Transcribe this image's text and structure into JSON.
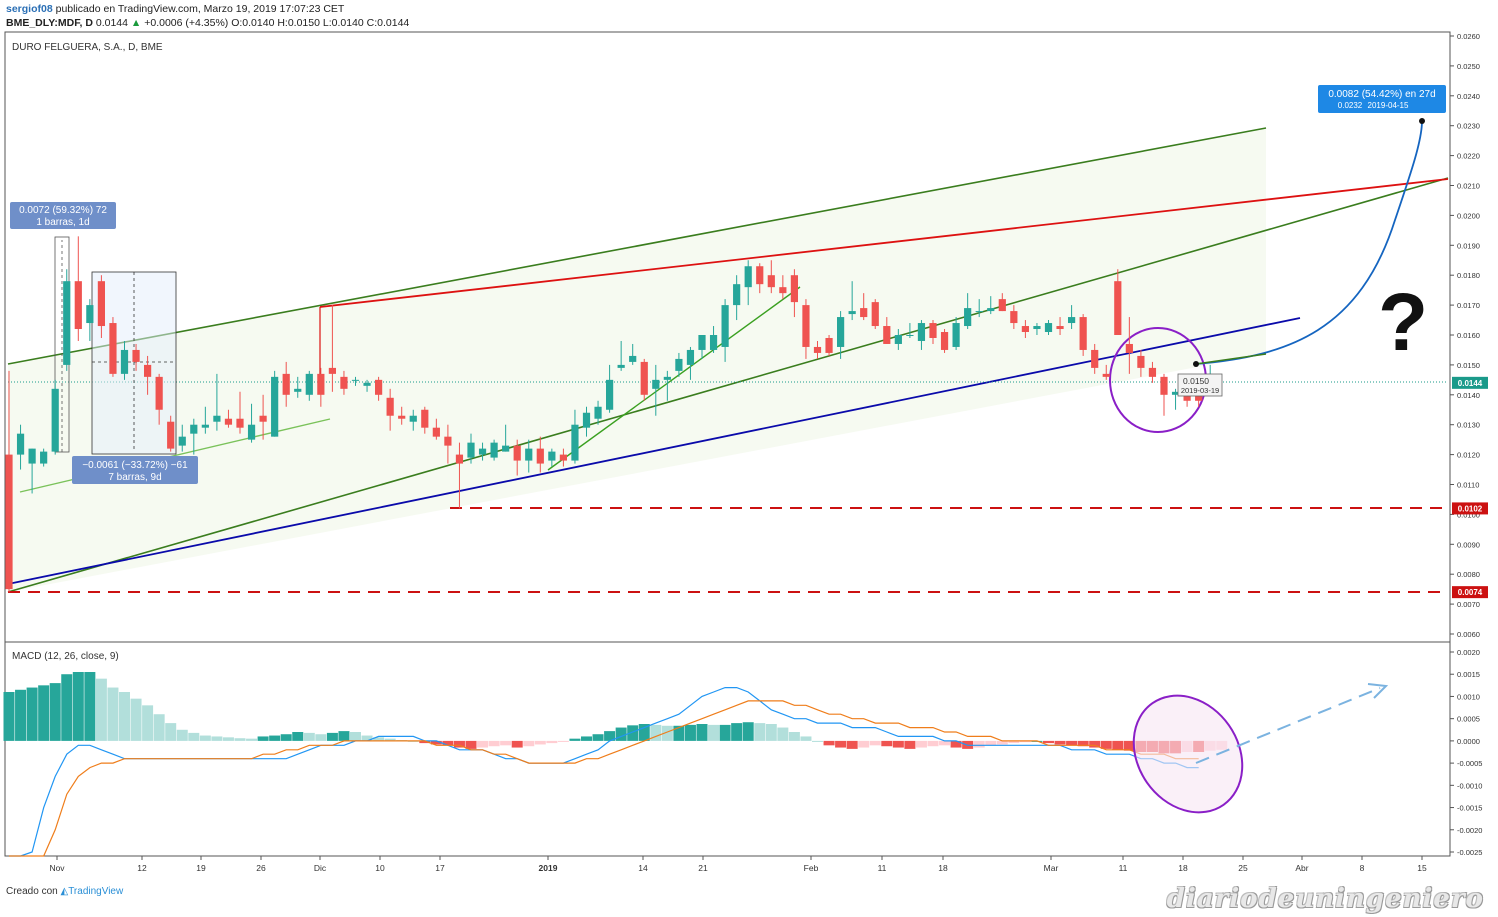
{
  "header": {
    "author": "sergiof08",
    "published_text": "publicado en TradingView.com, Marzo 19, 2019 17:07:23 CET",
    "symbol": "BME_DLY:MDF, D",
    "last_price": "0.0144",
    "change": "+0.0006 (+4.35%)",
    "ohlc_text": "O:0.0140 H:0.0150 L:0.0140 C:0.0144"
  },
  "chart_data": [
    {
      "type": "candlestick",
      "title": "DURO FELGUERA, S.A., D, BME",
      "y_axis_ticks": [
        "0.0260",
        "0.0250",
        "0.0240",
        "0.0230",
        "0.0220",
        "0.0210",
        "0.0200",
        "0.0190",
        "0.0180",
        "0.0170",
        "0.0160",
        "0.0150",
        "0.0140",
        "0.0130",
        "0.0120",
        "0.0110",
        "0.0100",
        "0.0090",
        "0.0080",
        "0.0070",
        "0.0060"
      ],
      "ylim": [
        0.0056,
        0.0261
      ],
      "x_axis_ticks": [
        "Nov",
        "12",
        "19",
        "26",
        "Dic",
        "10",
        "17",
        "2019",
        "14",
        "21",
        "Feb",
        "11",
        "18",
        "Mar",
        "11",
        "18",
        "25",
        "Abr",
        "8",
        "15"
      ],
      "candles": [
        {
          "o": 0.012,
          "h": 0.0148,
          "l": 0.0074,
          "c": 0.0075
        },
        {
          "o": 0.012,
          "h": 0.013,
          "l": 0.0115,
          "c": 0.0127
        },
        {
          "o": 0.0117,
          "h": 0.0122,
          "l": 0.0107,
          "c": 0.0122
        },
        {
          "o": 0.0117,
          "h": 0.0122,
          "l": 0.0116,
          "c": 0.0121
        },
        {
          "o": 0.0121,
          "h": 0.0145,
          "l": 0.012,
          "c": 0.0142
        },
        {
          "o": 0.015,
          "h": 0.0182,
          "l": 0.0148,
          "c": 0.0178
        },
        {
          "o": 0.0178,
          "h": 0.0193,
          "l": 0.0158,
          "c": 0.0162
        },
        {
          "o": 0.0164,
          "h": 0.0172,
          "l": 0.0158,
          "c": 0.017
        },
        {
          "o": 0.0178,
          "h": 0.018,
          "l": 0.0159,
          "c": 0.0163
        },
        {
          "o": 0.0164,
          "h": 0.0166,
          "l": 0.0146,
          "c": 0.0147
        },
        {
          "o": 0.0147,
          "h": 0.0158,
          "l": 0.0145,
          "c": 0.0155
        },
        {
          "o": 0.0155,
          "h": 0.0157,
          "l": 0.0148,
          "c": 0.0151
        },
        {
          "o": 0.015,
          "h": 0.0153,
          "l": 0.014,
          "c": 0.0146
        },
        {
          "o": 0.0146,
          "h": 0.0147,
          "l": 0.013,
          "c": 0.0135
        },
        {
          "o": 0.0131,
          "h": 0.0133,
          "l": 0.0121,
          "c": 0.0122
        },
        {
          "o": 0.0123,
          "h": 0.013,
          "l": 0.0121,
          "c": 0.0126
        },
        {
          "o": 0.0127,
          "h": 0.0132,
          "l": 0.012,
          "c": 0.013
        },
        {
          "o": 0.0129,
          "h": 0.0136,
          "l": 0.0127,
          "c": 0.013
        },
        {
          "o": 0.0131,
          "h": 0.0147,
          "l": 0.0128,
          "c": 0.0133
        },
        {
          "o": 0.0132,
          "h": 0.0135,
          "l": 0.0129,
          "c": 0.013
        },
        {
          "o": 0.0132,
          "h": 0.0141,
          "l": 0.0127,
          "c": 0.0129
        },
        {
          "o": 0.0125,
          "h": 0.0137,
          "l": 0.0124,
          "c": 0.013
        },
        {
          "o": 0.0133,
          "h": 0.014,
          "l": 0.0125,
          "c": 0.0131
        },
        {
          "o": 0.0126,
          "h": 0.0148,
          "l": 0.0126,
          "c": 0.0146
        },
        {
          "o": 0.0147,
          "h": 0.0151,
          "l": 0.0136,
          "c": 0.014
        },
        {
          "o": 0.0141,
          "h": 0.0146,
          "l": 0.0139,
          "c": 0.0142
        },
        {
          "o": 0.014,
          "h": 0.0148,
          "l": 0.0138,
          "c": 0.0147
        },
        {
          "o": 0.0147,
          "h": 0.0149,
          "l": 0.0136,
          "c": 0.014
        },
        {
          "o": 0.0149,
          "h": 0.017,
          "l": 0.0141,
          "c": 0.0147
        },
        {
          "o": 0.0146,
          "h": 0.0148,
          "l": 0.014,
          "c": 0.0142
        },
        {
          "o": 0.0145,
          "h": 0.0146,
          "l": 0.0143,
          "c": 0.0145
        },
        {
          "o": 0.0143,
          "h": 0.0145,
          "l": 0.0141,
          "c": 0.0144
        },
        {
          "o": 0.0145,
          "h": 0.0146,
          "l": 0.0138,
          "c": 0.014
        },
        {
          "o": 0.0139,
          "h": 0.0142,
          "l": 0.0128,
          "c": 0.0133
        },
        {
          "o": 0.0133,
          "h": 0.0136,
          "l": 0.013,
          "c": 0.0132
        },
        {
          "o": 0.0131,
          "h": 0.0135,
          "l": 0.0128,
          "c": 0.0133
        },
        {
          "o": 0.0135,
          "h": 0.0136,
          "l": 0.0127,
          "c": 0.0129
        },
        {
          "o": 0.0129,
          "h": 0.0132,
          "l": 0.0125,
          "c": 0.0126
        },
        {
          "o": 0.0126,
          "h": 0.013,
          "l": 0.0117,
          "c": 0.0123
        },
        {
          "o": 0.012,
          "h": 0.0124,
          "l": 0.0102,
          "c": 0.0117
        },
        {
          "o": 0.0119,
          "h": 0.0127,
          "l": 0.0117,
          "c": 0.0124
        },
        {
          "o": 0.012,
          "h": 0.0124,
          "l": 0.0118,
          "c": 0.0122
        },
        {
          "o": 0.0119,
          "h": 0.0125,
          "l": 0.0118,
          "c": 0.0124
        },
        {
          "o": 0.0121,
          "h": 0.013,
          "l": 0.0121,
          "c": 0.0123
        },
        {
          "o": 0.0123,
          "h": 0.0125,
          "l": 0.0113,
          "c": 0.0118
        },
        {
          "o": 0.0118,
          "h": 0.0125,
          "l": 0.0114,
          "c": 0.0122
        },
        {
          "o": 0.0122,
          "h": 0.0126,
          "l": 0.0114,
          "c": 0.0117
        },
        {
          "o": 0.0118,
          "h": 0.0122,
          "l": 0.0116,
          "c": 0.0121
        },
        {
          "o": 0.012,
          "h": 0.0122,
          "l": 0.0116,
          "c": 0.0118
        },
        {
          "o": 0.0118,
          "h": 0.0135,
          "l": 0.0117,
          "c": 0.013
        },
        {
          "o": 0.0129,
          "h": 0.0136,
          "l": 0.0126,
          "c": 0.0134
        },
        {
          "o": 0.0132,
          "h": 0.0138,
          "l": 0.013,
          "c": 0.0136
        },
        {
          "o": 0.0135,
          "h": 0.015,
          "l": 0.0134,
          "c": 0.0145
        },
        {
          "o": 0.0149,
          "h": 0.0158,
          "l": 0.0148,
          "c": 0.015
        },
        {
          "o": 0.0151,
          "h": 0.0157,
          "l": 0.015,
          "c": 0.0153
        },
        {
          "o": 0.0151,
          "h": 0.0152,
          "l": 0.0138,
          "c": 0.014
        },
        {
          "o": 0.0142,
          "h": 0.015,
          "l": 0.0133,
          "c": 0.0145
        },
        {
          "o": 0.0145,
          "h": 0.0148,
          "l": 0.0138,
          "c": 0.0146
        },
        {
          "o": 0.0148,
          "h": 0.0154,
          "l": 0.0146,
          "c": 0.0152
        },
        {
          "o": 0.015,
          "h": 0.0156,
          "l": 0.0145,
          "c": 0.0155
        },
        {
          "o": 0.0155,
          "h": 0.016,
          "l": 0.0152,
          "c": 0.016
        },
        {
          "o": 0.0155,
          "h": 0.0163,
          "l": 0.0154,
          "c": 0.016
        },
        {
          "o": 0.0156,
          "h": 0.0172,
          "l": 0.0151,
          "c": 0.017
        },
        {
          "o": 0.017,
          "h": 0.018,
          "l": 0.0165,
          "c": 0.0177
        },
        {
          "o": 0.0176,
          "h": 0.0185,
          "l": 0.017,
          "c": 0.0183
        },
        {
          "o": 0.0183,
          "h": 0.0184,
          "l": 0.0174,
          "c": 0.0177
        },
        {
          "o": 0.018,
          "h": 0.0185,
          "l": 0.0174,
          "c": 0.0176
        },
        {
          "o": 0.0176,
          "h": 0.018,
          "l": 0.0172,
          "c": 0.0174
        },
        {
          "o": 0.018,
          "h": 0.0182,
          "l": 0.0166,
          "c": 0.0171
        },
        {
          "o": 0.017,
          "h": 0.0172,
          "l": 0.0152,
          "c": 0.0156
        },
        {
          "o": 0.0156,
          "h": 0.0158,
          "l": 0.0152,
          "c": 0.0154
        },
        {
          "o": 0.0159,
          "h": 0.016,
          "l": 0.0153,
          "c": 0.0154
        },
        {
          "o": 0.0156,
          "h": 0.0168,
          "l": 0.0152,
          "c": 0.0166
        },
        {
          "o": 0.0167,
          "h": 0.0178,
          "l": 0.0165,
          "c": 0.0168
        },
        {
          "o": 0.0169,
          "h": 0.0174,
          "l": 0.0165,
          "c": 0.0166
        },
        {
          "o": 0.0171,
          "h": 0.0172,
          "l": 0.0162,
          "c": 0.0163
        },
        {
          "o": 0.0163,
          "h": 0.0166,
          "l": 0.0157,
          "c": 0.0157
        },
        {
          "o": 0.0157,
          "h": 0.0162,
          "l": 0.0155,
          "c": 0.016
        },
        {
          "o": 0.016,
          "h": 0.0164,
          "l": 0.0159,
          "c": 0.016
        },
        {
          "o": 0.0158,
          "h": 0.0165,
          "l": 0.0155,
          "c": 0.0164
        },
        {
          "o": 0.0164,
          "h": 0.0165,
          "l": 0.0157,
          "c": 0.0159
        },
        {
          "o": 0.0161,
          "h": 0.0162,
          "l": 0.0154,
          "c": 0.0155
        },
        {
          "o": 0.0156,
          "h": 0.0166,
          "l": 0.0155,
          "c": 0.0164
        },
        {
          "o": 0.0163,
          "h": 0.0174,
          "l": 0.0162,
          "c": 0.0169
        },
        {
          "o": 0.0168,
          "h": 0.0172,
          "l": 0.0166,
          "c": 0.0168
        },
        {
          "o": 0.0168,
          "h": 0.0173,
          "l": 0.0167,
          "c": 0.0169
        },
        {
          "o": 0.0172,
          "h": 0.0174,
          "l": 0.0168,
          "c": 0.0168
        },
        {
          "o": 0.0168,
          "h": 0.017,
          "l": 0.0162,
          "c": 0.0164
        },
        {
          "o": 0.0163,
          "h": 0.0165,
          "l": 0.0159,
          "c": 0.0161
        },
        {
          "o": 0.0162,
          "h": 0.0164,
          "l": 0.016,
          "c": 0.0163
        },
        {
          "o": 0.0161,
          "h": 0.0165,
          "l": 0.016,
          "c": 0.0164
        },
        {
          "o": 0.0163,
          "h": 0.0166,
          "l": 0.016,
          "c": 0.0162
        },
        {
          "o": 0.0164,
          "h": 0.017,
          "l": 0.0162,
          "c": 0.0166
        },
        {
          "o": 0.0166,
          "h": 0.0167,
          "l": 0.0153,
          "c": 0.0155
        },
        {
          "o": 0.0155,
          "h": 0.0157,
          "l": 0.0147,
          "c": 0.0149
        },
        {
          "o": 0.0147,
          "h": 0.015,
          "l": 0.0145,
          "c": 0.0146
        },
        {
          "o": 0.0178,
          "h": 0.0182,
          "l": 0.016,
          "c": 0.016
        },
        {
          "o": 0.0157,
          "h": 0.0166,
          "l": 0.0147,
          "c": 0.0154
        },
        {
          "o": 0.0153,
          "h": 0.0155,
          "l": 0.0146,
          "c": 0.0149
        },
        {
          "o": 0.0149,
          "h": 0.0151,
          "l": 0.0144,
          "c": 0.0146
        },
        {
          "o": 0.0146,
          "h": 0.0147,
          "l": 0.0133,
          "c": 0.014
        },
        {
          "o": 0.014,
          "h": 0.0142,
          "l": 0.0135,
          "c": 0.0141
        },
        {
          "o": 0.014,
          "h": 0.0143,
          "l": 0.0136,
          "c": 0.0138
        },
        {
          "o": 0.014,
          "h": 0.0142,
          "l": 0.0136,
          "c": 0.0138
        },
        {
          "o": 0.014,
          "h": 0.015,
          "l": 0.014,
          "c": 0.0144
        }
      ],
      "price_labels": [
        {
          "value": 0.0144,
          "text": "0.0144",
          "color": "#1a9a8a"
        },
        {
          "value": 0.0102,
          "text": "0.0102",
          "color": "#cc1111"
        },
        {
          "value": 0.0074,
          "text": "0.0074",
          "color": "#cc1111"
        }
      ],
      "annotations": {
        "measure_up": {
          "line1": "0.0072 (59.32%) 72",
          "line2": "1 barras, 1d"
        },
        "measure_down": {
          "line1": "−0.0061 (−33.72%) −61",
          "line2": "7 barras, 9d"
        },
        "projection": {
          "line1": "0.0082 (54.42%) en 27d",
          "line2_price": "0.0232",
          "line2_date": "2019-04-15"
        },
        "point_label": {
          "value": "0.0150",
          "date": "2019-03-19"
        },
        "question_mark": "?"
      }
    },
    {
      "type": "macd",
      "title": "MACD (12, 26, close, 9)",
      "y_axis_ticks": [
        "0.0020",
        "0.0015",
        "0.0010",
        "0.0005",
        "0.0000",
        "-0.0005",
        "-0.0010",
        "-0.0015",
        "-0.0020",
        "-0.0025"
      ],
      "ylim": [
        -0.0026,
        0.0022
      ],
      "histogram": [
        0.0011,
        0.00115,
        0.0012,
        0.00125,
        0.0013,
        0.0015,
        0.00155,
        0.00155,
        0.0014,
        0.0012,
        0.0011,
        0.00095,
        0.0008,
        0.0006,
        0.0004,
        0.00025,
        0.00018,
        0.00012,
        0.0001,
        8e-05,
        6e-05,
        5e-05,
        0.0001,
        0.00012,
        0.00015,
        0.0002,
        0.00018,
        0.00015,
        0.00018,
        0.00022,
        0.0002,
        0.00012,
        8e-05,
        5e-05,
        2e-05,
        0.0,
        -5e-05,
        -8e-05,
        -0.0001,
        -0.00015,
        -0.00018,
        -0.00015,
        -0.00012,
        -0.0001,
        -0.00015,
        -0.00012,
        -8e-05,
        -5e-05,
        -2e-05,
        5e-05,
        0.0001,
        0.00015,
        0.00022,
        0.0003,
        0.00035,
        0.00038,
        0.00036,
        0.00034,
        0.00034,
        0.00036,
        0.00038,
        0.00036,
        0.00036,
        0.0004,
        0.00042,
        0.0004,
        0.00038,
        0.0003,
        0.0002,
        0.0001,
        0.0,
        -0.0001,
        -0.00015,
        -0.00018,
        -0.00015,
        -0.0001,
        -0.00012,
        -0.00015,
        -0.00018,
        -0.00015,
        -0.00012,
        -0.0001,
        -0.00015,
        -0.00018,
        -0.00015,
        -0.0001,
        -8e-05,
        -5e-05,
        -3e-05,
        0.0,
        -5e-05,
        -8e-05,
        -0.0001,
        -0.00012,
        -0.00015,
        -0.00018,
        -0.0002,
        -0.00022,
        -0.00025,
        -0.00025,
        -0.00028,
        -0.00028,
        -0.00025,
        -0.00025,
        -0.00022,
        -0.0002
      ],
      "macd_line": [
        -0.0045,
        -0.004,
        -0.0025,
        -0.0015,
        -0.0008,
        -0.0003,
        -0.0001,
        -0.0001,
        -0.0002,
        -0.0003,
        -0.0004,
        -0.0004,
        -0.0004,
        -0.0004,
        -0.0004,
        -0.0004,
        -0.0004,
        -0.0004,
        -0.0004,
        -0.0004,
        -0.0004,
        -0.0004,
        -0.0004,
        -0.0004,
        -0.0004,
        -0.0003,
        -0.0002,
        -0.0001,
        -0.0001,
        -0.0001,
        0.0,
        0.0,
        0.0001,
        0.0001,
        0.0001,
        0.0001,
        0.0,
        0.0,
        -0.0001,
        -0.0002,
        -0.0002,
        -0.0002,
        -0.0003,
        -0.0004,
        -0.0004,
        -0.0005,
        -0.0005,
        -0.0005,
        -0.0005,
        -0.0004,
        -0.0003,
        -0.0002,
        0.0,
        0.0001,
        0.0002,
        0.0003,
        0.0004,
        0.0005,
        0.0006,
        0.0008,
        0.001,
        0.0011,
        0.0012,
        0.0012,
        0.0011,
        0.0009,
        0.0007,
        0.0006,
        0.0005,
        0.0005,
        0.0004,
        0.0004,
        0.0004,
        0.0003,
        0.0003,
        0.0003,
        0.0002,
        0.0001,
        0.0001,
        0.0001,
        0.0001,
        0.0,
        0.0,
        -0.0001,
        -0.0001,
        -0.0001,
        -0.0001,
        -0.0001,
        -0.0001,
        -0.0001,
        -0.0001,
        -0.0001,
        -0.0002,
        -0.0002,
        -0.0002,
        -0.0003,
        -0.0003,
        -0.0003,
        -0.0004,
        -0.0004,
        -0.0005,
        -0.0005,
        -0.0006,
        -0.0006
      ],
      "signal_line": [
        -0.005,
        -0.0047,
        -0.004,
        -0.003,
        -0.002,
        -0.0012,
        -0.0008,
        -0.0006,
        -0.0005,
        -0.0005,
        -0.0004,
        -0.0004,
        -0.0004,
        -0.0004,
        -0.0004,
        -0.0004,
        -0.0004,
        -0.0004,
        -0.0004,
        -0.0004,
        -0.0004,
        -0.0004,
        -0.0003,
        -0.0003,
        -0.0002,
        -0.0002,
        -0.0001,
        -0.0001,
        -0.0001,
        0.0,
        0.0,
        0.0,
        0.0,
        0.0,
        0.0,
        0.0,
        0.0,
        -0.0001,
        -0.0001,
        -0.0001,
        -0.0002,
        -0.0002,
        -0.0003,
        -0.0003,
        -0.0004,
        -0.0005,
        -0.0005,
        -0.0005,
        -0.0005,
        -0.0005,
        -0.0004,
        -0.0004,
        -0.0003,
        -0.0002,
        -0.0001,
        0.0,
        0.0001,
        0.0002,
        0.0003,
        0.0004,
        0.0005,
        0.0006,
        0.0007,
        0.0008,
        0.0009,
        0.0009,
        0.0009,
        0.0009,
        0.0008,
        0.0008,
        0.0007,
        0.0006,
        0.0006,
        0.0005,
        0.0005,
        0.0004,
        0.0004,
        0.0004,
        0.0003,
        0.0003,
        0.0003,
        0.0002,
        0.0002,
        0.0001,
        0.0001,
        0.0001,
        0.0,
        0.0,
        0.0,
        0.0,
        -0.0001,
        -0.0001,
        -0.0001,
        -0.0001,
        -0.0001,
        -0.0002,
        -0.0002,
        -0.0002,
        -0.0003,
        -0.0003,
        -0.0003,
        -0.0004,
        -0.0004,
        -0.0004
      ]
    }
  ],
  "footer": {
    "created_with": "Creado con",
    "brand": "TradingView"
  },
  "watermark": "diariodeuningeniero",
  "colors": {
    "up": "#26a69a",
    "down": "#ef5350",
    "channel": "#3a7d1e",
    "resistance": "#dd1111",
    "support": "#0a0aaa",
    "highlight": "#8a1fc7",
    "projection": "#1565c0"
  }
}
